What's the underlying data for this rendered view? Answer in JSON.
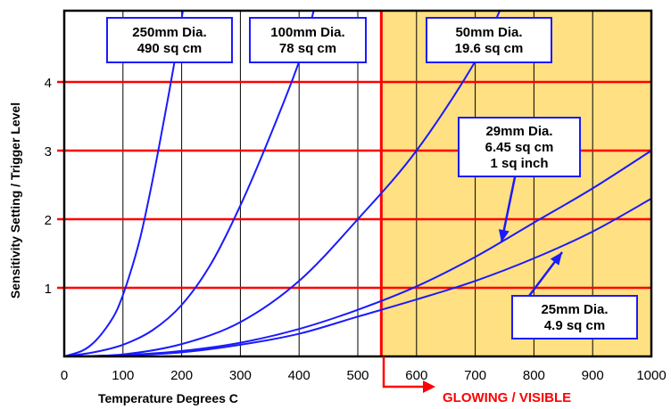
{
  "chart_data": {
    "type": "line",
    "xlabel": "Temperature  Degrees C",
    "ylabel": "Sensitivity Setting / Trigger Level",
    "xlim": [
      0,
      1000
    ],
    "ylim": [
      0,
      4.3
    ],
    "x_ticks": [
      "0",
      "100",
      "200",
      "300",
      "400",
      "500",
      "600",
      "700",
      "800",
      "900",
      "1000"
    ],
    "y_ticks": [
      "1",
      "2",
      "3",
      "4"
    ],
    "grid": "vertical lines every 100; red horizontal lines at 1, 2, 3, 4",
    "shaded_region": {
      "x_from": 540,
      "x_to": 1000,
      "color": "#ffe082",
      "label": "GLOWING / VISIBLE"
    },
    "series": [
      {
        "x": [
          0,
          30,
          50,
          70,
          90,
          110,
          130,
          150,
          170,
          190,
          205
        ],
        "y": [
          0,
          0.08,
          0.2,
          0.4,
          0.68,
          1.15,
          1.75,
          2.55,
          3.45,
          4.4,
          5.2
        ]
      },
      {
        "x": [
          0,
          50,
          100,
          150,
          200,
          250,
          300,
          350,
          400,
          430
        ],
        "y": [
          0,
          0.06,
          0.17,
          0.38,
          0.75,
          1.35,
          2.2,
          3.2,
          4.3,
          5.2
        ]
      },
      {
        "x": [
          0,
          100,
          200,
          300,
          400,
          500,
          600,
          700,
          750
        ],
        "y": [
          0,
          0.03,
          0.18,
          0.5,
          1.1,
          2.0,
          3.0,
          4.3,
          5.2
        ]
      },
      {
        "x": [
          0,
          100,
          200,
          300,
          400,
          500,
          600,
          700,
          800,
          900,
          1000
        ],
        "y": [
          0,
          0.02,
          0.08,
          0.2,
          0.4,
          0.68,
          1.02,
          1.45,
          1.95,
          2.45,
          3.0
        ]
      },
      {
        "x": [
          0,
          100,
          200,
          300,
          400,
          500,
          600,
          700,
          800,
          900,
          1000
        ],
        "y": [
          0,
          0.015,
          0.06,
          0.17,
          0.33,
          0.58,
          0.83,
          1.1,
          1.43,
          1.82,
          2.3
        ]
      }
    ],
    "annotations": [
      {
        "lines": [
          "250mm Dia.",
          "490 sq cm"
        ]
      },
      {
        "lines": [
          "100mm Dia.",
          "78 sq cm"
        ]
      },
      {
        "lines": [
          "50mm Dia.",
          "19.6 sq cm"
        ]
      },
      {
        "lines": [
          "29mm Dia.",
          "6.45 sq cm",
          "1 sq inch"
        ],
        "highlight_line": 2,
        "highlight_color": "#008000"
      },
      {
        "lines": [
          "25mm Dia.",
          "4.9 sq cm"
        ]
      }
    ],
    "colors": {
      "curve": "#1a1aff",
      "hgrid": "#ff0000",
      "vgrid": "#000000",
      "boundary": "#ff0000",
      "shade": "#ffe082"
    }
  }
}
